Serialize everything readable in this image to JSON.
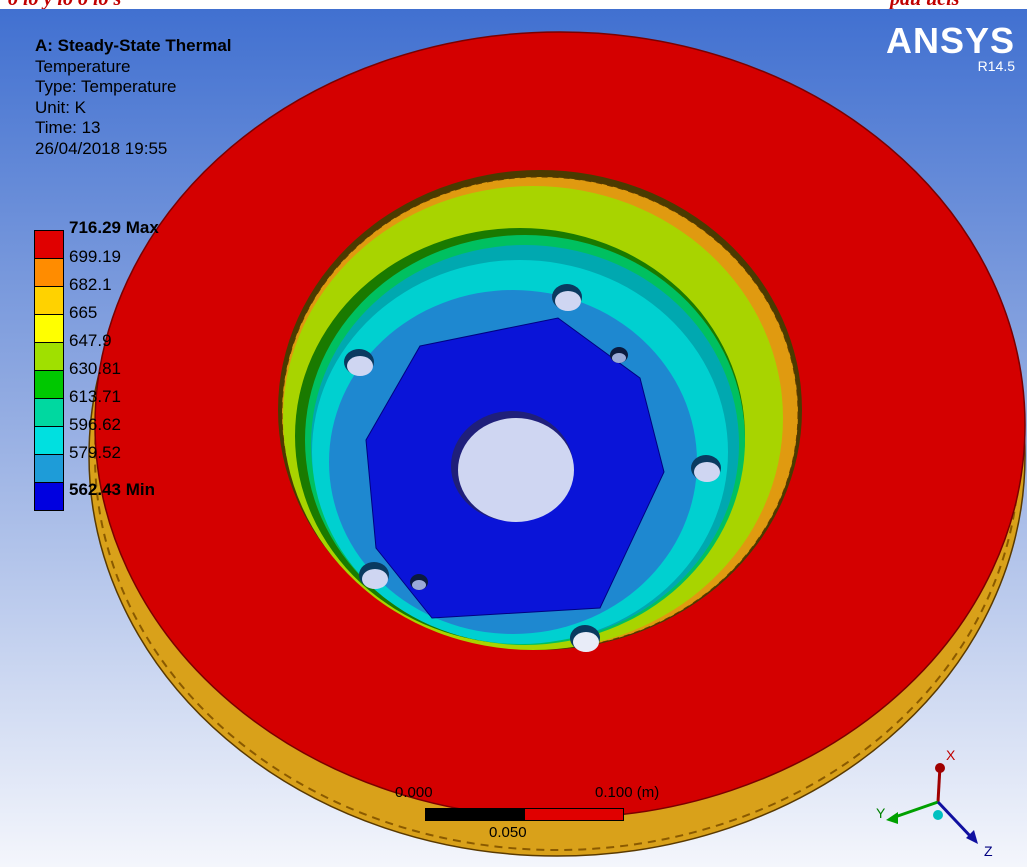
{
  "analysis": {
    "title": "A: Steady-State Thermal",
    "result_name": "Temperature",
    "type_line": "Type: Temperature",
    "unit_line": "Unit: K",
    "time_line": "Time: 13",
    "timestamp": "26/04/2018 19:55"
  },
  "legend": {
    "entries": [
      {
        "label": "716.29 Max",
        "color": "#e00000"
      },
      {
        "label": "699.19",
        "color": "#ff8c00"
      },
      {
        "label": "682.1",
        "color": "#ffd200"
      },
      {
        "label": "665",
        "color": "#ffff00"
      },
      {
        "label": "647.9",
        "color": "#a0e000"
      },
      {
        "label": "630.81",
        "color": "#00c800"
      },
      {
        "label": "613.71",
        "color": "#00d8a0"
      },
      {
        "label": "596.62",
        "color": "#00e0e0"
      },
      {
        "label": "579.52",
        "color": "#1e9cd8"
      },
      {
        "label": "562.43 Min",
        "color": "#0000e0"
      }
    ]
  },
  "branding": {
    "product": "ANSYS",
    "version": "R14.5"
  },
  "scale_bar": {
    "start_label": "0.000",
    "mid_label": "0.050",
    "end_label": "0.100 (m)"
  },
  "triad": {
    "x_label": "X",
    "y_label": "Y",
    "z_label": "Z"
  },
  "top_caption": {
    "left_text": "o lo y lo o lo s",
    "right_text": "pau ucis"
  },
  "colors": {
    "disc_red": "#d40000",
    "disc_edge_orange": "#e09a10",
    "hub_blue": "#0a14d8",
    "bore": "#cfd6f2"
  }
}
